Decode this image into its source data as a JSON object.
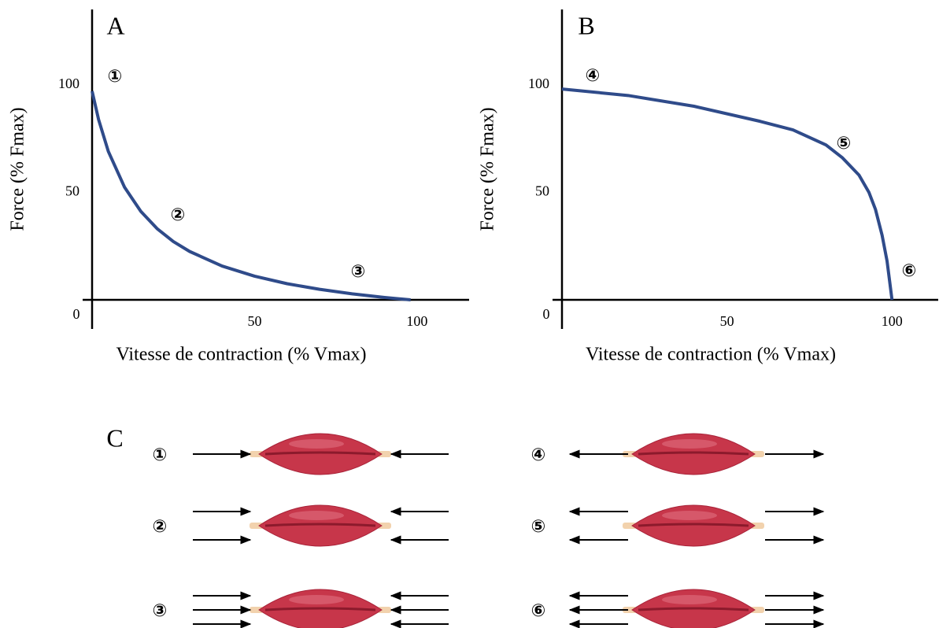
{
  "chart_data": [
    {
      "type": "line",
      "title": "A",
      "xlabel": "Vitesse de contraction (% Vmax)",
      "ylabel": "Force (% Fmax)",
      "x": [
        0,
        2,
        5,
        10,
        15,
        20,
        25,
        30,
        40,
        50,
        60,
        70,
        80,
        90,
        98
      ],
      "series": [
        {
          "color": "#2f4b8a",
          "values": [
            97,
            83.8,
            69,
            52.3,
            41.1,
            33.1,
            27.1,
            22.5,
            15.7,
            11,
            7.5,
            4.9,
            2.8,
            1.1,
            0
          ]
        }
      ],
      "xlim": [
        0,
        116
      ],
      "ylim": [
        0,
        135
      ],
      "xticks": [
        0,
        50,
        100
      ],
      "yticks": [
        50,
        100
      ],
      "annotations": [
        "①",
        "②",
        "③"
      ]
    },
    {
      "type": "line",
      "title": "B",
      "xlabel": "Vitesse de contraction (% Vmax)",
      "ylabel": "Force (% Fmax)",
      "x": [
        0,
        20,
        40,
        60,
        70,
        80,
        85,
        90,
        93,
        95,
        97,
        98.5,
        100
      ],
      "series": [
        {
          "color": "#2f4b8a",
          "values": [
            98,
            95,
            90,
            83,
            79,
            72,
            66,
            58,
            50,
            42,
            30,
            18,
            0
          ]
        }
      ],
      "xlim": [
        0,
        114
      ],
      "ylim": [
        0,
        135
      ],
      "xticks": [
        0,
        50,
        100
      ],
      "yticks": [
        50,
        100
      ],
      "annotations": [
        "④",
        "⑤",
        "⑥"
      ]
    }
  ],
  "panel_c": {
    "label": "C",
    "rows": [
      {
        "left": "①",
        "right": "④"
      },
      {
        "left": "②",
        "right": "⑤"
      },
      {
        "left": "③",
        "right": "⑥"
      }
    ]
  }
}
